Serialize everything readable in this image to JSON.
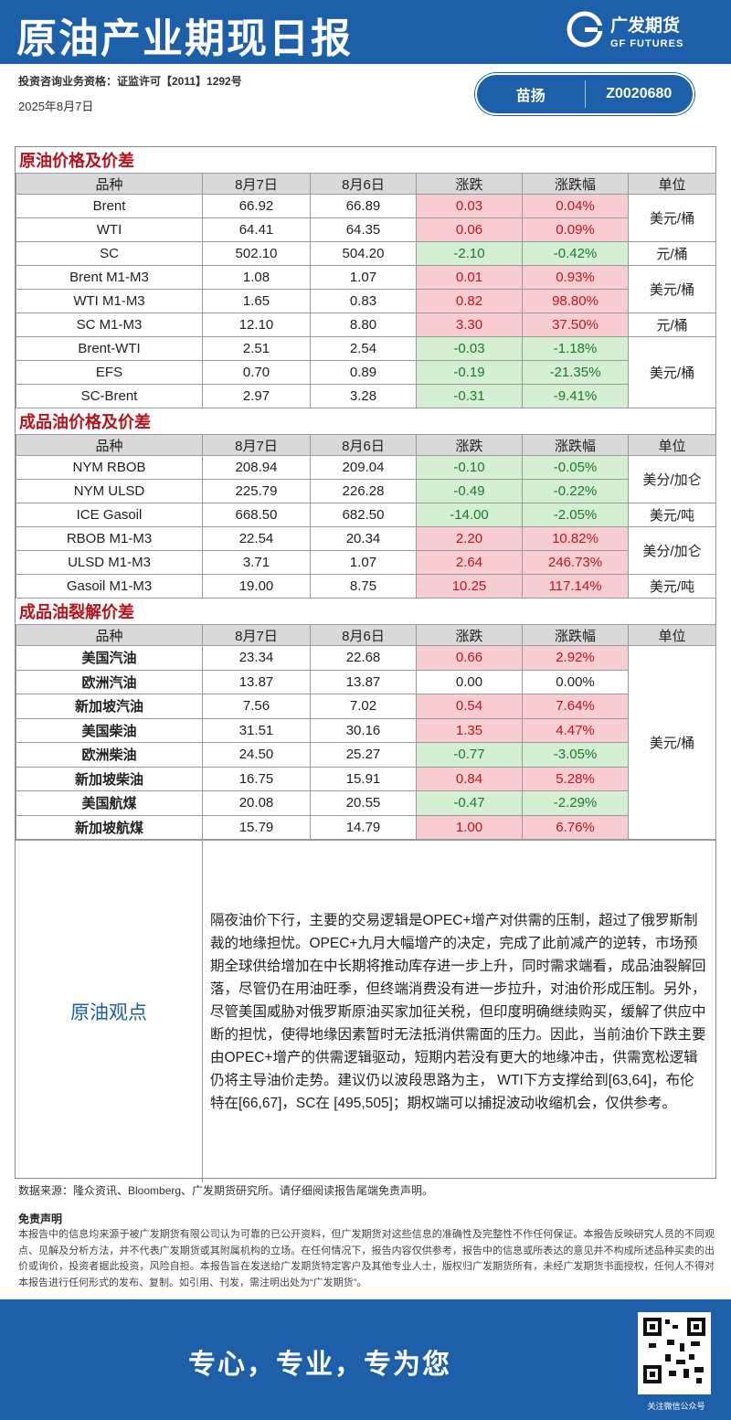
{
  "header": {
    "title": "原油产业期现日报",
    "logo_cn": "广发期货",
    "logo_en": "GF FUTURES",
    "license": "投资咨询业务资格：证监许可【2011】1292号",
    "date": "2025年8月7日",
    "analyst": "苗扬",
    "analyst_id": "Z0020680"
  },
  "sections": [
    {
      "title": "原油价格及价差",
      "columns": [
        "品种",
        "8月7日",
        "8月6日",
        "涨跌",
        "涨跌幅",
        "单位"
      ],
      "rows": [
        [
          "Brent",
          "66.92",
          "66.89",
          "0.03",
          "0.04%"
        ],
        [
          "WTI",
          "64.41",
          "64.35",
          "0.06",
          "0.09%"
        ],
        [
          "SC",
          "502.10",
          "504.20",
          "-2.10",
          "-0.42%"
        ],
        [
          "Brent M1-M3",
          "1.08",
          "1.07",
          "0.01",
          "0.93%"
        ],
        [
          "WTI M1-M3",
          "1.65",
          "0.83",
          "0.82",
          "98.80%"
        ],
        [
          "SC M1-M3",
          "12.10",
          "8.80",
          "3.30",
          "37.50%"
        ],
        [
          "Brent-WTI",
          "2.51",
          "2.54",
          "-0.03",
          "-1.18%"
        ],
        [
          "EFS",
          "0.70",
          "0.89",
          "-0.19",
          "-21.35%"
        ],
        [
          "SC-Brent",
          "2.97",
          "3.28",
          "-0.31",
          "-9.41%"
        ]
      ],
      "units": [
        "美元/桶",
        null,
        "元/桶",
        "美元/桶",
        null,
        "元/桶",
        "美元/桶",
        null,
        null
      ]
    },
    {
      "title": "成品油价格及价差",
      "columns": [
        "品种",
        "8月7日",
        "8月6日",
        "涨跌",
        "涨跌幅",
        "单位"
      ],
      "rows": [
        [
          "NYM RBOB",
          "208.94",
          "209.04",
          "-0.10",
          "-0.05%"
        ],
        [
          "NYM ULSD",
          "225.79",
          "226.28",
          "-0.49",
          "-0.22%"
        ],
        [
          "ICE Gasoil",
          "668.50",
          "682.50",
          "-14.00",
          "-2.05%"
        ],
        [
          "RBOB M1-M3",
          "22.54",
          "20.34",
          "2.20",
          "10.82%"
        ],
        [
          "ULSD M1-M3",
          "3.71",
          "1.07",
          "2.64",
          "246.73%"
        ],
        [
          "Gasoil M1-M3",
          "19.00",
          "8.75",
          "10.25",
          "117.14%"
        ]
      ],
      "units": [
        "美分/加仑",
        null,
        "美元/吨",
        "美分/加仑",
        null,
        "美元/吨"
      ]
    },
    {
      "title": "成品油裂解价差",
      "columns": [
        "品种",
        "8月7日",
        "8月6日",
        "涨跌",
        "涨跌幅",
        "单位"
      ],
      "rows": [
        [
          "美国汽油",
          "23.34",
          "22.68",
          "0.66",
          "2.92%"
        ],
        [
          "欧洲汽油",
          "13.87",
          "13.87",
          "0.00",
          "0.00%"
        ],
        [
          "新加坡汽油",
          "7.56",
          "7.02",
          "0.54",
          "7.64%"
        ],
        [
          "美国柴油",
          "31.51",
          "30.16",
          "1.35",
          "4.47%"
        ],
        [
          "欧洲柴油",
          "24.50",
          "25.27",
          "-0.77",
          "-3.05%"
        ],
        [
          "新加坡柴油",
          "16.75",
          "15.91",
          "0.84",
          "5.28%"
        ],
        [
          "美国航煤",
          "20.08",
          "20.55",
          "-0.47",
          "-2.29%"
        ],
        [
          "新加坡航煤",
          "15.79",
          "14.79",
          "1.00",
          "6.76%"
        ]
      ],
      "units": [
        "美元/桶",
        null,
        null,
        null,
        null,
        null,
        null,
        null
      ]
    }
  ],
  "opinion": {
    "label": "原油观点",
    "text": "隔夜油价下行，主要的交易逻辑是OPEC+增产对供需的压制，超过了俄罗斯制裁的地缘担忧。OPEC+九月大幅增产的决定，完成了此前减产的逆转，市场预期全球供给增加在中长期将推动库存进一步上升，同时需求端看，成品油裂解回落，尽管仍在用油旺季，但终端消费没有进一步拉升，对油价形成压制。另外，尽管美国威胁对俄罗斯原油买家加征关税，但印度明确继续购买，缓解了供应中断的担忧，使得地缘因素暂时无法抵消供需面的压力。因此，当前油价下跌主要由OPEC+增产的供需逻辑驱动，短期内若没有更大的地缘冲击，供需宽松逻辑仍将主导油价走势。建议仍以波段思路为主， WTI下方支撑给到[63,64]，布伦特在[66,67]，SC在 [495,505]；期权端可以捕捉波动收缩机会，仅供参考。"
  },
  "source": "数据来源：隆众资讯、Bloomberg、广发期货研究所。请仔细阅读报告尾端免责声明。",
  "disclaimer": {
    "title": "免责声明",
    "text": "本报告中的信息均来源于被广发期货有限公司认为可靠的已公开资料，但广发期货对这些信息的准确性及完整性不作任何保证。本报告反映研究人员的不同观点、见解及分析方法，并不代表广发期货或其附属机构的立场。在任何情况下，报告内容仅供参考，报告中的信息或所表达的意见并不构成所述品种买卖的出价或询价，投资者据此投资，风险自担。本报告旨在发送给广发期货特定客户及其他专业人士，版权归广发期货所有，未经广发期货书面授权，任何人不得对本报告进行任何形式的发布、复制。如引用、刊发，需注明出处为“广发期货”。"
  },
  "footer": {
    "slogan": "专心，专业，专为您",
    "qr_caption": "关注微信公众号"
  }
}
